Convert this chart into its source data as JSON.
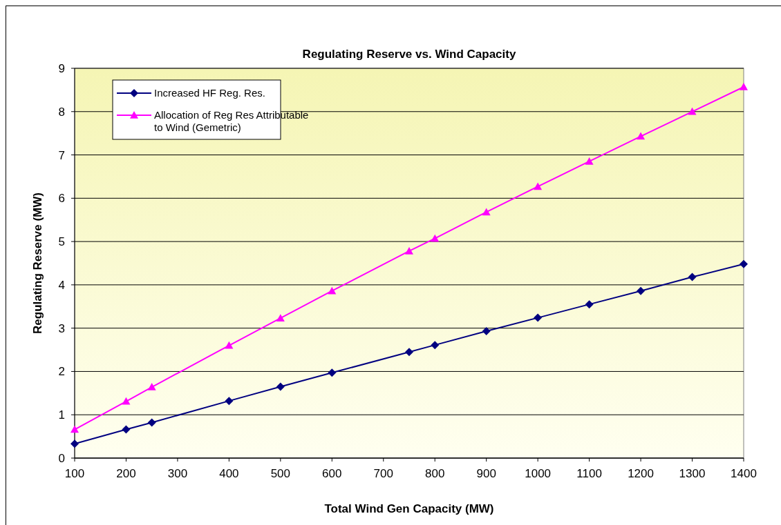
{
  "chart_data": {
    "type": "line",
    "title": "Regulating Reserve vs. Wind Capacity",
    "xlabel": "Total Wind Gen Capacity (MW)",
    "ylabel": "Regulating Reserve (MW)",
    "x": [
      100,
      200,
      250,
      400,
      500,
      600,
      750,
      800,
      900,
      1000,
      1100,
      1200,
      1300,
      1400
    ],
    "series": [
      {
        "name": "Increased HF Reg. Res.",
        "color": "#000080",
        "marker": "diamond",
        "values": [
          0.33,
          0.66,
          0.82,
          1.32,
          1.65,
          1.97,
          2.45,
          2.61,
          2.93,
          3.24,
          3.55,
          3.86,
          4.18,
          4.48
        ]
      },
      {
        "name": "Allocation of Reg Res Attributable to Wind (Gemetric)",
        "color": "#ff00ff",
        "marker": "triangle",
        "values": [
          0.66,
          1.31,
          1.64,
          2.6,
          3.23,
          3.86,
          4.78,
          5.07,
          5.68,
          6.27,
          6.85,
          7.43,
          8.0,
          8.57
        ]
      }
    ],
    "xlim": [
      100,
      1400
    ],
    "xticks": [
      100,
      200,
      300,
      400,
      500,
      600,
      700,
      800,
      900,
      1000,
      1100,
      1200,
      1300,
      1400
    ],
    "ylim": [
      0,
      9
    ],
    "yticks": [
      0,
      1,
      2,
      3,
      4,
      5,
      6,
      7,
      8,
      9
    ],
    "grid": "y",
    "legend": "top left",
    "line_style": "solid"
  }
}
